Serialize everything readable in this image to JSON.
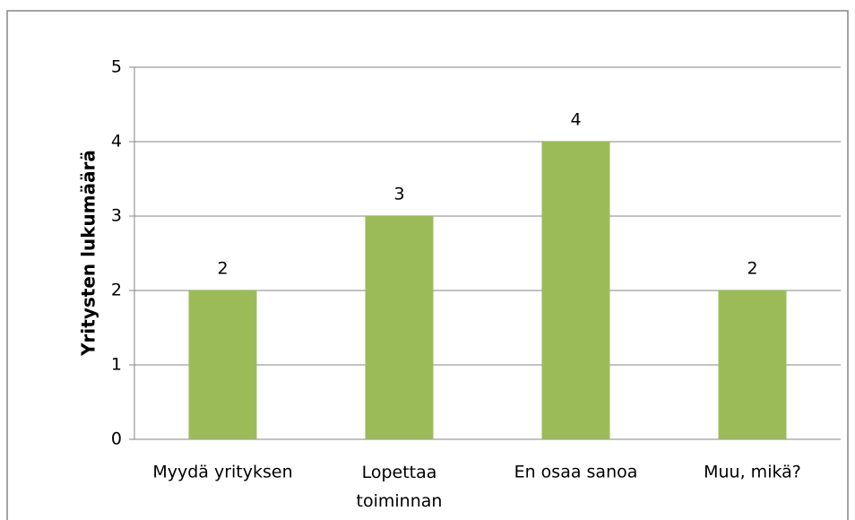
{
  "chart_data": {
    "type": "bar",
    "y_label": "Yritysten lukumäärä",
    "categories": [
      "Myydä yrityksen",
      "Lopettaa\ntoiminnan",
      "En osaa sanoa",
      "Muu, mikä?"
    ],
    "values": [
      2,
      3,
      4,
      2
    ],
    "color": "#9bbb59",
    "ylim": [
      0,
      5
    ],
    "yticks": [
      0,
      1,
      2,
      3,
      4,
      5
    ],
    "grid": true
  }
}
